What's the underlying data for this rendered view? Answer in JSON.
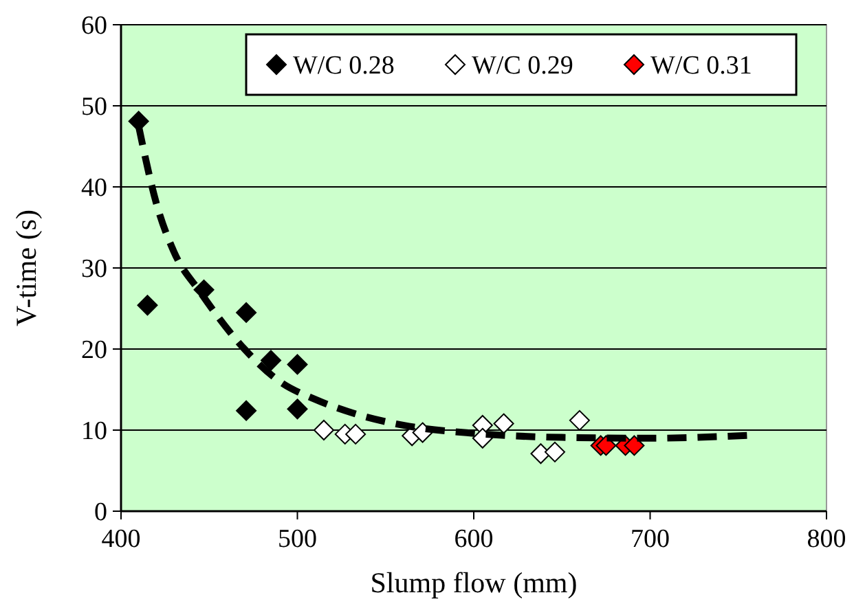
{
  "chart_data": {
    "type": "scatter",
    "xlabel": "Slump flow (mm)",
    "ylabel": "V-time (s)",
    "xlim": [
      400,
      800
    ],
    "xticks": [
      400,
      500,
      600,
      700,
      800
    ],
    "ylim": [
      0,
      60
    ],
    "yticks": [
      0,
      10,
      20,
      30,
      40,
      50,
      60
    ],
    "grid": "y",
    "legend": "top right",
    "marker": "diamond",
    "series": [
      {
        "name": "W/C 0.28",
        "color": "#000000",
        "x": [
          410,
          415,
          447,
          471,
          471,
          485,
          500,
          500
        ],
        "values": [
          48.1,
          25.4,
          27.3,
          24.5,
          12.4,
          18.6,
          18.1,
          12.6
        ]
      },
      {
        "name": "W/C 0.29",
        "color": "#ffffff",
        "x": [
          515,
          527,
          533,
          565,
          571,
          605,
          605,
          617,
          638,
          646,
          660
        ],
        "values": [
          10.0,
          9.5,
          9.5,
          9.3,
          9.7,
          10.6,
          9.0,
          10.8,
          7.1,
          7.3,
          11.2
        ]
      },
      {
        "name": "W/C 0.31",
        "color": "#ff0000",
        "x": [
          672,
          675,
          686,
          691
        ],
        "values": [
          8.1,
          8.1,
          8.1,
          8.1
        ]
      },
      {
        "type": "line",
        "color": "#000000",
        "line_style": "dashed",
        "marker": "none",
        "x": [
          410,
          420,
          430,
          445,
          470,
          490,
          510,
          530,
          560,
          600,
          650,
          700,
          760
        ],
        "values": [
          47.5,
          38,
          32,
          27,
          20,
          16,
          13.8,
          12.2,
          10.6,
          9.6,
          9.1,
          9.0,
          9.4
        ]
      }
    ]
  }
}
